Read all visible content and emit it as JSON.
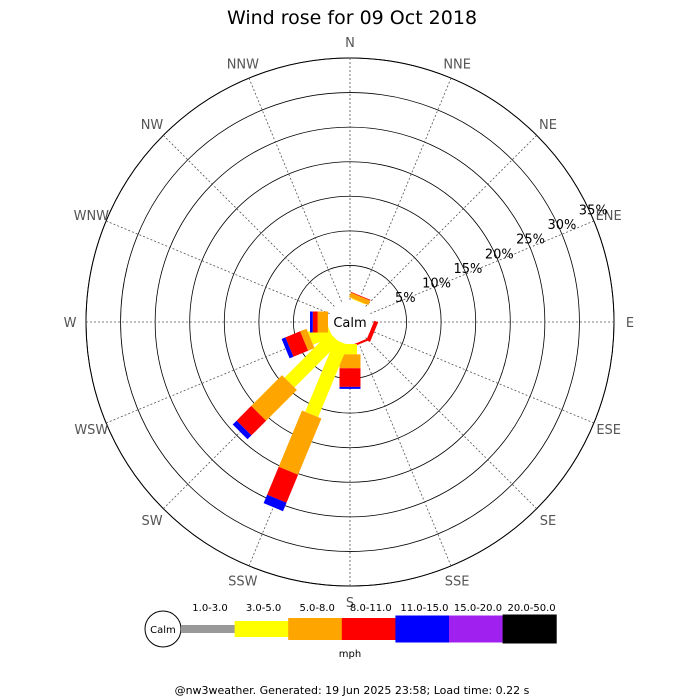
{
  "chart_data": {
    "type": "windrose",
    "title": "Wind rose for 09 Oct 2018",
    "directions": [
      "N",
      "NNE",
      "NE",
      "ENE",
      "E",
      "ESE",
      "SE",
      "SSE",
      "S",
      "SSW",
      "SW",
      "WSW",
      "W",
      "WNW",
      "NW",
      "NNW"
    ],
    "rings": [
      5,
      10,
      15,
      20,
      25,
      30,
      35
    ],
    "ring_labels": [
      "5%",
      "10%",
      "15%",
      "20%",
      "25%",
      "30%",
      "35%"
    ],
    "rmax": 35,
    "calm_label": "Calm",
    "unit_label": "mph",
    "bins": [
      {
        "label": "1.0-3.0",
        "color": "#999999"
      },
      {
        "label": "3.0-5.0",
        "color": "#ffff00"
      },
      {
        "label": "5.0-8.0",
        "color": "#ffa500"
      },
      {
        "label": "8.0-11.0",
        "color": "#ff0000"
      },
      {
        "label": "11.0-15.0",
        "color": "#0000ff"
      },
      {
        "label": "15.0-20.0",
        "color": "#a020f0"
      },
      {
        "label": "20.0-50.0",
        "color": "#000000"
      }
    ],
    "series": [
      {
        "direction": "NNE",
        "cumulative": [
          0.0,
          0.1,
          0.8,
          0.9,
          0.9,
          0.9,
          0.9
        ]
      },
      {
        "direction": "ESE",
        "cumulative": [
          0.0,
          0.0,
          0.0,
          0.6,
          0.6,
          0.6,
          0.6
        ]
      },
      {
        "direction": "SSE",
        "cumulative": [
          0.0,
          0.0,
          0.0,
          0.3,
          0.3,
          0.3,
          0.3
        ]
      },
      {
        "direction": "S",
        "cumulative": [
          0.0,
          1.5,
          3.5,
          6.2,
          6.5,
          6.5,
          6.5
        ]
      },
      {
        "direction": "SSW",
        "cumulative": [
          0.0,
          11.3,
          20.1,
          24.5,
          25.8,
          25.8,
          25.8
        ]
      },
      {
        "direction": "SW",
        "cumulative": [
          0.0,
          9.2,
          15.5,
          18.5,
          19.3,
          19.3,
          19.3
        ]
      },
      {
        "direction": "WSW",
        "cumulative": [
          0.0,
          3.0,
          4.0,
          6.3,
          6.9,
          6.9,
          6.9
        ]
      },
      {
        "direction": "W",
        "cumulative": [
          0.0,
          0.0,
          1.5,
          2.2,
          2.6,
          2.6,
          2.6
        ]
      }
    ]
  },
  "footer": "@nw3weather. Generated: 19 Jun 2025 23:58; Load time: 0.22 s"
}
